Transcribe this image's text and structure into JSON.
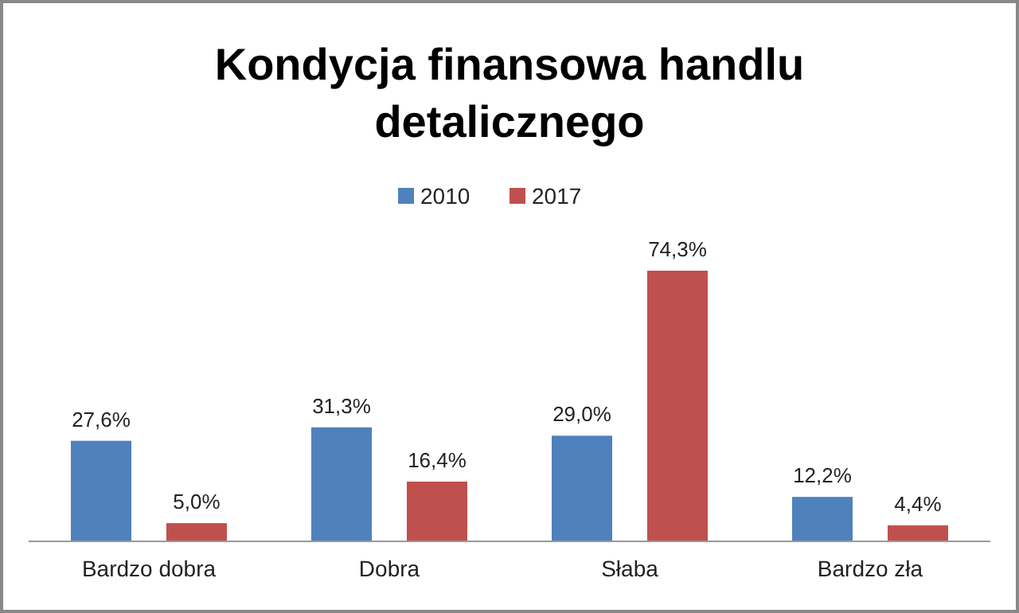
{
  "chart_data": {
    "type": "bar",
    "title": "Kondycja finansowa handlu detalicznego",
    "categories": [
      "Bardzo dobra",
      "Dobra",
      "Słaba",
      "Bardzo zła"
    ],
    "series": [
      {
        "name": "2010",
        "color": "#4f81bd",
        "values": [
          27.6,
          31.3,
          29.0,
          12.2
        ],
        "value_labels": [
          "27,6%",
          "31,3%",
          "29,0%",
          "12,2%"
        ]
      },
      {
        "name": "2017",
        "color": "#c0504d",
        "values": [
          5.0,
          16.4,
          74.3,
          4.4
        ],
        "value_labels": [
          "5,0%",
          "16,4%",
          "74,3%",
          "4,4%"
        ]
      }
    ],
    "legend": "top",
    "ylim": [
      0,
      74.3
    ],
    "tick_labels": "x"
  }
}
